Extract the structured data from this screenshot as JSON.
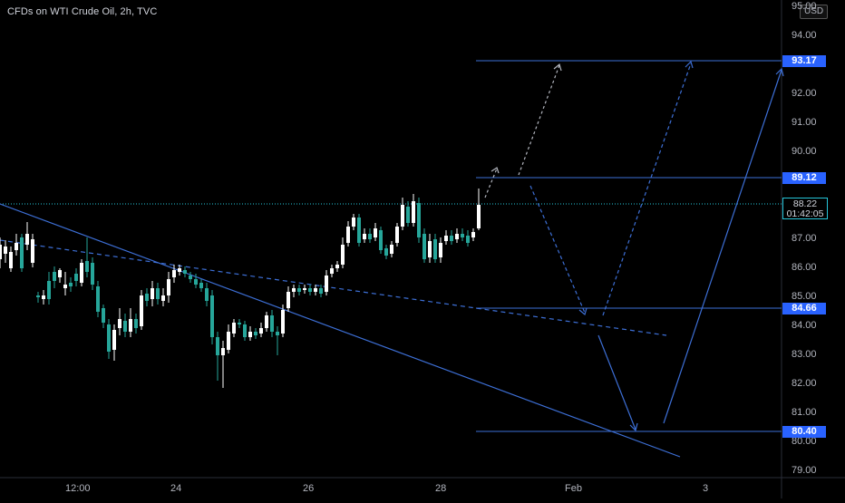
{
  "title": "CFDs on WTI Crude Oil, 2h, TVC",
  "currency": "USD",
  "price_axis": [
    "95.00",
    "94.00",
    "93.00",
    "92.00",
    "91.00",
    "90.00",
    "89.00",
    "88.00",
    "87.00",
    "86.00",
    "85.00",
    "84.00",
    "83.00",
    "82.00",
    "81.00",
    "80.00",
    "79.00"
  ],
  "time_axis": [
    "12:00",
    "24",
    "26",
    "28",
    "Feb",
    "3"
  ],
  "level_tags": [
    "93.17",
    "89.12",
    "84.66",
    "80.40"
  ],
  "current_price": {
    "value": "88.22",
    "countdown": "01:42:05"
  },
  "colors": {
    "up": "#ffffff",
    "down": "#26a69a",
    "accent": "#2962ff",
    "line": "#3d6fd6"
  }
}
